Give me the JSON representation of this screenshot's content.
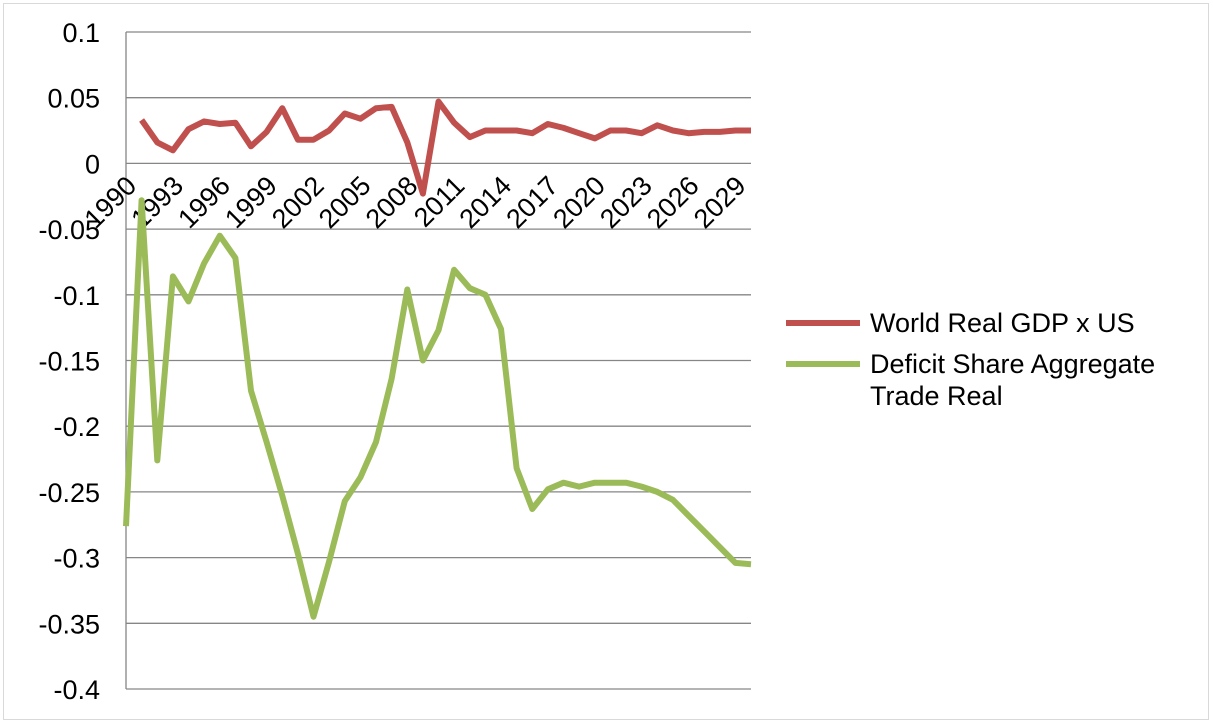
{
  "chart_data": {
    "type": "line",
    "title": "",
    "xlabel": "",
    "ylabel": "",
    "x_tick_labels": [
      "1990",
      "1993",
      "1996",
      "1999",
      "2002",
      "2005",
      "2008",
      "2011",
      "2014",
      "2017",
      "2020",
      "2023",
      "2026",
      "2029"
    ],
    "y_tick_labels": [
      "0.1",
      "0.05",
      "0",
      "-0.05",
      "-0.1",
      "-0.15",
      "-0.2",
      "-0.25",
      "-0.3",
      "-0.35",
      "-0.4"
    ],
    "ylim": [
      -0.4,
      0.1
    ],
    "y_step": 0.05,
    "xlim": [
      1990,
      2030
    ],
    "grid": true,
    "legend_position": "right",
    "series": [
      {
        "name": "World Real GDP x US",
        "color": "#c0504d",
        "x": [
          1991,
          1992,
          1993,
          1994,
          1995,
          1996,
          1997,
          1998,
          1999,
          2000,
          2001,
          2002,
          2003,
          2004,
          2005,
          2006,
          2007,
          2008,
          2009,
          2010,
          2011,
          2012,
          2013,
          2014,
          2015,
          2016,
          2017,
          2018,
          2019,
          2020,
          2021,
          2022,
          2023,
          2024,
          2025,
          2026,
          2027,
          2028,
          2029,
          2030
        ],
        "values": [
          0.033,
          0.016,
          0.01,
          0.026,
          0.032,
          0.03,
          0.031,
          0.013,
          0.024,
          0.042,
          0.018,
          0.018,
          0.025,
          0.038,
          0.034,
          0.042,
          0.043,
          0.016,
          -0.023,
          0.047,
          0.031,
          0.02,
          0.025,
          0.025,
          0.025,
          0.023,
          0.03,
          0.027,
          0.023,
          0.019,
          0.025,
          0.025,
          0.023,
          0.029,
          0.025,
          0.023,
          0.024,
          0.024,
          0.025,
          0.025
        ]
      },
      {
        "name": "Deficit Share Aggregate Trade Real",
        "color": "#9bbb59",
        "x": [
          1990,
          1991,
          1992,
          1993,
          1994,
          1995,
          1996,
          1997,
          1998,
          1999,
          2000,
          2001,
          2002,
          2003,
          2004,
          2005,
          2006,
          2007,
          2008,
          2009,
          2010,
          2011,
          2012,
          2013,
          2014,
          2015,
          2016,
          2017,
          2018,
          2019,
          2020,
          2021,
          2022,
          2023,
          2024,
          2025,
          2026,
          2027,
          2028,
          2029,
          2030
        ],
        "values": [
          -0.276,
          -0.028,
          -0.226,
          -0.086,
          -0.105,
          -0.076,
          -0.055,
          -0.072,
          -0.173,
          -0.212,
          -0.253,
          -0.297,
          -0.345,
          -0.303,
          -0.257,
          -0.239,
          -0.212,
          -0.164,
          -0.096,
          -0.15,
          -0.127,
          -0.081,
          -0.095,
          -0.1,
          -0.126,
          -0.232,
          -0.263,
          -0.248,
          -0.243,
          -0.246,
          -0.243,
          -0.243,
          -0.243,
          -0.246,
          -0.25,
          -0.256,
          -0.268,
          -0.28,
          -0.292,
          -0.304,
          -0.305
        ]
      }
    ]
  }
}
